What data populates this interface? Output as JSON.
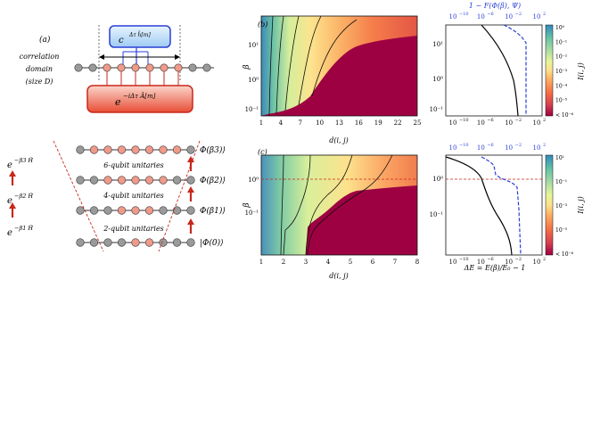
{
  "panel_a": {
    "label": "(a)",
    "side_lines": [
      "correlation",
      "domain",
      "(size D)"
    ],
    "blue_box": "c",
    "blue_box_sub": "Δτ h̃[m]",
    "red_box": "e",
    "red_box_sup": "−iΔτ Â[m]",
    "exp_labels": [
      "e",
      "e",
      "e"
    ],
    "exp_sups": [
      "−β3 Ĥ",
      "−β2 Ĥ",
      "−β1 Ĥ"
    ],
    "row_labels": [
      "6-qubit unitaries",
      "4-qubit unitaries",
      "2-qubit unitaries"
    ],
    "state_labels": [
      "Φ(β3)⟩",
      "Φ(β2)⟩",
      "Φ(β1)⟩",
      "|Φ(0)⟩"
    ]
  },
  "panel_b": {
    "label": "(b)",
    "ylabel": "β",
    "xlabel": "d(i, j)",
    "xticks": [
      "1",
      "4",
      "7",
      "10",
      "13",
      "16",
      "19",
      "22",
      "25"
    ],
    "yticks": [
      "10¹",
      "10⁰",
      "10⁻¹"
    ]
  },
  "panel_c": {
    "label": "(c)",
    "ylabel": "β",
    "xlabel": "d(i, j)",
    "xticks": [
      "1",
      "2",
      "3",
      "4",
      "5",
      "6",
      "7",
      "8"
    ],
    "yticks": [
      "10⁰",
      "10⁻¹"
    ]
  },
  "side_plot_top": {
    "top_title": "1 − F(Φ(β), Ψ)",
    "top_ticks": [
      "10",
      "10",
      "10",
      "10"
    ],
    "top_tick_exps": [
      "−10",
      "−6",
      "−2",
      "2"
    ],
    "bottom_ticks": [
      "10",
      "10",
      "10",
      "10"
    ],
    "bottom_tick_exps": [
      "−10",
      "−6",
      "−2",
      "2"
    ],
    "yticks": [
      "10¹",
      "10⁰",
      "10⁻¹"
    ]
  },
  "side_plot_bottom": {
    "top_ticks": [
      "10",
      "10",
      "10",
      "10"
    ],
    "top_tick_exps": [
      "−10",
      "−6",
      "−2",
      "2"
    ],
    "bottom_ticks": [
      "10",
      "10",
      "10",
      "10"
    ],
    "bottom_tick_exps": [
      "−10",
      "−6",
      "−2",
      "2"
    ],
    "yticks": [
      "10⁰",
      "10⁻¹"
    ],
    "xlabel": "ΔE = E(β)/E₀ − 1"
  },
  "colorbar_top": {
    "label": "I(i, j)",
    "ticks": [
      "10⁰",
      "10⁻¹",
      "10⁻²",
      "10⁻³",
      "10⁻⁴",
      "10⁻⁵",
      "< 10⁻⁶"
    ]
  },
  "colorbar_bottom": {
    "label": "I(i, j)",
    "ticks": [
      "10¹",
      "10⁻¹",
      "10⁻³",
      "10⁻⁵",
      "< 10⁻⁶"
    ]
  },
  "colors": {
    "accent_blue": "#2a3fd6",
    "accent_red": "#c8281c",
    "heat_low": "#9e0142",
    "heat_high": "#3288bd"
  }
}
